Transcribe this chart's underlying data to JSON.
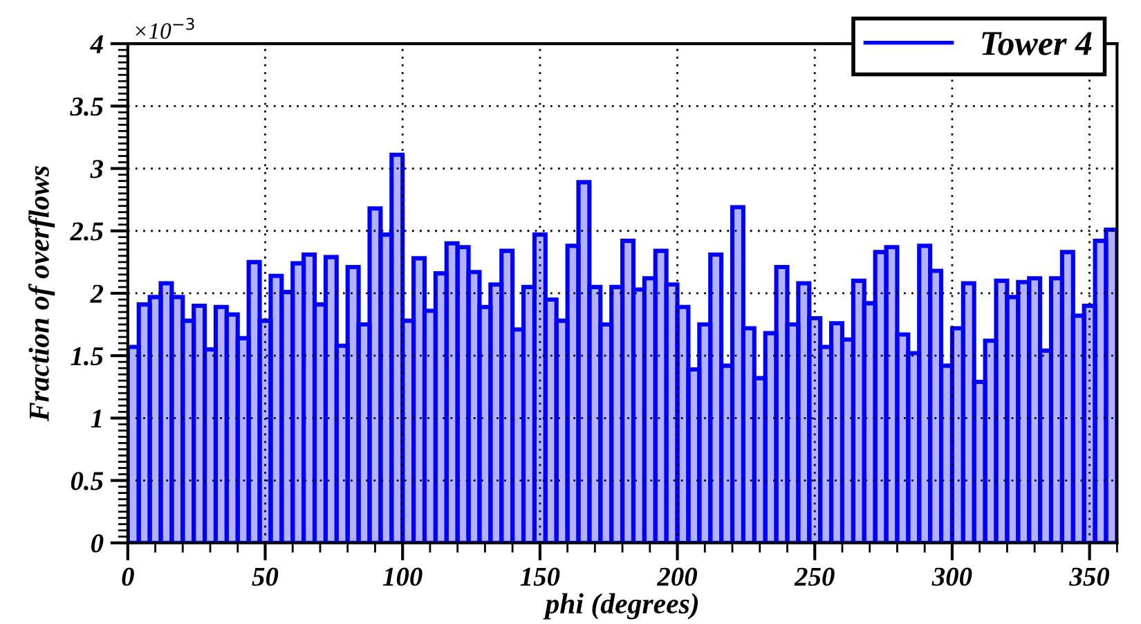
{
  "chart_data": {
    "type": "histogram",
    "xlabel": "phi (degrees)",
    "ylabel": "Fraction of overflows",
    "annotations": [
      "×10$^{−3}$"
    ],
    "bins": [
      0,
      4,
      8,
      12,
      16,
      20,
      24,
      28,
      32,
      36,
      40,
      44,
      48,
      52,
      56,
      60,
      64,
      68,
      72,
      76,
      80,
      84,
      88,
      92,
      96,
      100,
      104,
      108,
      112,
      116,
      120,
      124,
      128,
      132,
      136,
      140,
      144,
      148,
      152,
      156,
      160,
      164,
      168,
      172,
      176,
      180,
      184,
      188,
      192,
      196,
      200,
      204,
      208,
      212,
      216,
      220,
      224,
      228,
      232,
      236,
      240,
      244,
      248,
      252,
      256,
      260,
      264,
      268,
      272,
      276,
      280,
      284,
      288,
      292,
      296,
      300,
      304,
      308,
      312,
      316,
      320,
      324,
      328,
      332,
      336,
      340,
      344,
      348,
      352,
      356,
      360
    ],
    "series": [
      {
        "name": "Tower 4",
        "color": "#0000ff",
        "values": [
          1.57,
          1.91,
          1.97,
          2.08,
          1.97,
          1.78,
          1.9,
          1.55,
          1.89,
          1.83,
          1.64,
          2.25,
          1.78,
          2.14,
          2.01,
          2.24,
          2.31,
          1.91,
          2.29,
          1.58,
          2.21,
          1.75,
          2.68,
          2.47,
          3.11,
          1.78,
          2.28,
          1.86,
          2.16,
          2.4,
          2.37,
          2.17,
          1.89,
          2.07,
          2.34,
          1.71,
          2.05,
          2.47,
          1.95,
          1.78,
          2.38,
          2.89,
          2.05,
          1.75,
          2.05,
          2.42,
          2.03,
          2.12,
          2.34,
          2.07,
          1.89,
          1.39,
          1.75,
          2.31,
          1.42,
          2.69,
          1.72,
          1.32,
          1.68,
          2.21,
          1.75,
          2.08,
          1.8,
          1.57,
          1.76,
          1.63,
          2.1,
          1.92,
          2.33,
          2.37,
          1.67,
          1.52,
          2.38,
          2.18,
          1.42,
          1.72,
          2.08,
          1.29,
          1.62,
          2.1,
          1.97,
          2.09,
          2.12,
          1.54,
          2.12,
          2.33,
          1.82,
          1.9,
          2.42,
          2.51
        ]
      }
    ],
    "xlim": [
      0,
      360
    ],
    "xticks": [
      0,
      50,
      100,
      150,
      200,
      250,
      300,
      350
    ],
    "ylim": [
      0,
      4
    ],
    "yticks": [
      0,
      0.5,
      1,
      1.5,
      2,
      2.5,
      3,
      3.5,
      4
    ],
    "grid": true,
    "legend": "top right"
  }
}
